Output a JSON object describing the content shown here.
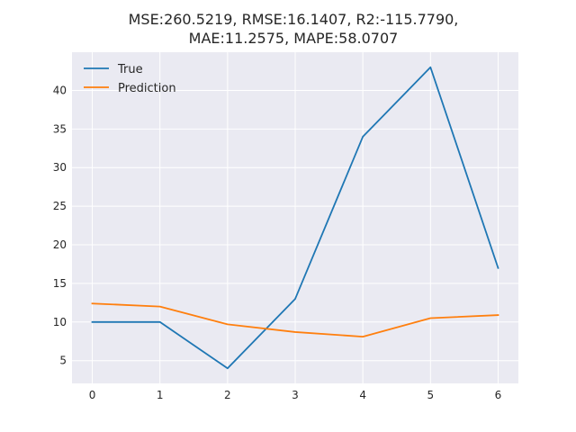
{
  "chart_data": {
    "type": "line",
    "title_lines": [
      "MSE:260.5219, RMSE:16.1407, R2:-115.7790,",
      "MAE:11.2575, MAPE:58.0707"
    ],
    "xlabel": "",
    "ylabel": "",
    "x": [
      0,
      1,
      2,
      3,
      4,
      5,
      6
    ],
    "xlim": [
      -0.3,
      6.3
    ],
    "ylim": [
      2.05,
      44.95
    ],
    "xticks": [
      0,
      1,
      2,
      3,
      4,
      5,
      6
    ],
    "yticks": [
      5,
      10,
      15,
      20,
      25,
      30,
      35,
      40
    ],
    "grid": true,
    "legend_position": "top-left",
    "style": {
      "axes_bg": "#eaeaf2",
      "grid_color": "#ffffff"
    },
    "series": [
      {
        "name": "True",
        "color": "#1f77b4",
        "values": [
          10,
          10,
          4,
          13,
          34,
          43,
          17
        ]
      },
      {
        "name": "Prediction",
        "color": "#ff7f0e",
        "values": [
          12.4,
          12.0,
          9.7,
          8.7,
          8.1,
          10.5,
          10.9
        ]
      }
    ]
  }
}
